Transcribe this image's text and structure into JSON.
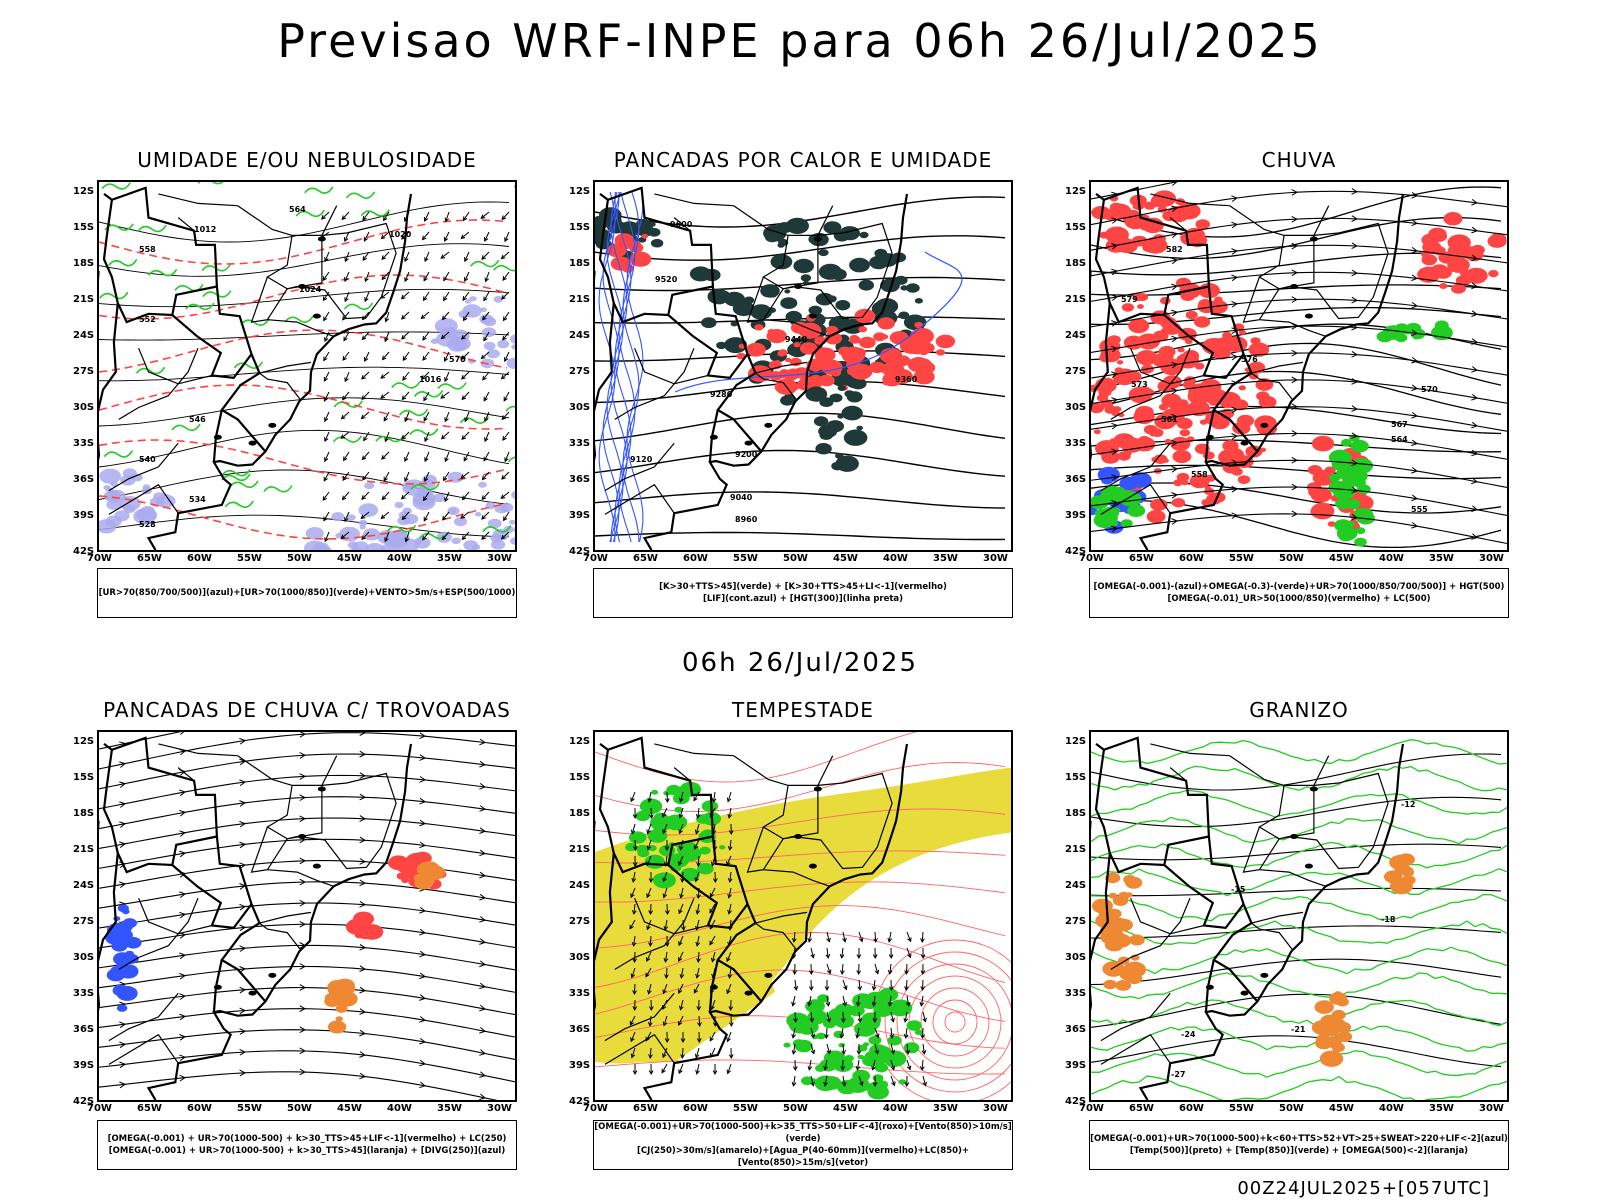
{
  "title": "Previsao WRF-INPE  para 06h 26/Jul/2025",
  "mid_title": "06h 26/Jul/2025",
  "footer": "00Z24JUL2025+[057UTC]",
  "lat_labels": [
    "12S",
    "15S",
    "18S",
    "21S",
    "24S",
    "27S",
    "30S",
    "33S",
    "36S",
    "39S",
    "42S"
  ],
  "lon_labels": [
    "70W",
    "65W",
    "60W",
    "55W",
    "50W",
    "45W",
    "40W",
    "35W",
    "30W"
  ],
  "panels": [
    {
      "title": "UMIDADE E/OU NEBULOSIDADE",
      "legend": [
        "[UR>70(850/700/500)](azul)+[UR>70(1000/850)](verde)+VENTO>5m/s+ESP(500/1000)"
      ]
    },
    {
      "title": "PANCADAS POR CALOR E UMIDADE",
      "legend": [
        "[K>30+TTS>45](verde) + [K>30+TTS>45+LI<-1](vermelho)",
        "[LIF](cont.azul) + [HGT(300)](linha preta)"
      ]
    },
    {
      "title": "CHUVA",
      "legend": [
        "[OMEGA(-0.001)-(azul)+OMEGA(-0.3)-(verde)+UR>70(1000/850/700/500)] + HGT(500)",
        "[OMEGA(-0.01)_UR>50(1000/850)(vermelho) + LC(500)"
      ]
    },
    {
      "title": "PANCADAS DE CHUVA C/ TROVOADAS",
      "legend": [
        "[OMEGA(-0.001) + UR>70(1000-500) + k>30_TTS>45+LIF<-1](vermelho) + LC(250)",
        "[OMEGA(-0.001) + UR>70(1000-500) + k>30_TTS>45](laranja) + [DIVG(250)](azul)"
      ]
    },
    {
      "title": "TEMPESTADE",
      "legend": [
        "[OMEGA(-0.001)+UR>70(1000-500)+k>35_TTS>50+LIF<-4](roxo)+[Vento(850)>10m/s](verde)",
        "[CJ(250)>30m/s](amarelo)+[Agua_P(40-60mm)](vermelho)+LC(850)+[Vento(850)>15m/s](vetor)"
      ]
    },
    {
      "title": "GRANIZO",
      "legend": [
        "[OMEGA(-0.001)+UR>70(1000-500)+k<60+TTS>52+VT>25+SWEAT>220+LIF<-2](azul)",
        "[Temp(500)](preto) + [Temp(850)](verde) + [OMEGA(500)<-2](laranja)"
      ]
    }
  ],
  "contour_labels": {
    "p1": [
      "1012",
      "1020",
      "1016",
      "1024",
      "570",
      "564",
      "558",
      "552",
      "546",
      "540",
      "534",
      "528"
    ],
    "p2": [
      "9600",
      "9520",
      "9440",
      "9360",
      "9280",
      "9200",
      "9120",
      "9040",
      "8960"
    ],
    "p3": [
      "582",
      "579",
      "576",
      "573",
      "570",
      "567",
      "564",
      "561",
      "558",
      "555"
    ],
    "p6": [
      "-12",
      "-15",
      "-18",
      "-21",
      "-24",
      "-27"
    ]
  },
  "colors": {
    "blue": "#3355ff",
    "green": "#22cc22",
    "red": "#ff4444",
    "orange": "#ee8833",
    "yellow": "#e8dc3c",
    "lavender": "#aaaaee",
    "darkteal": "#1f3838"
  }
}
